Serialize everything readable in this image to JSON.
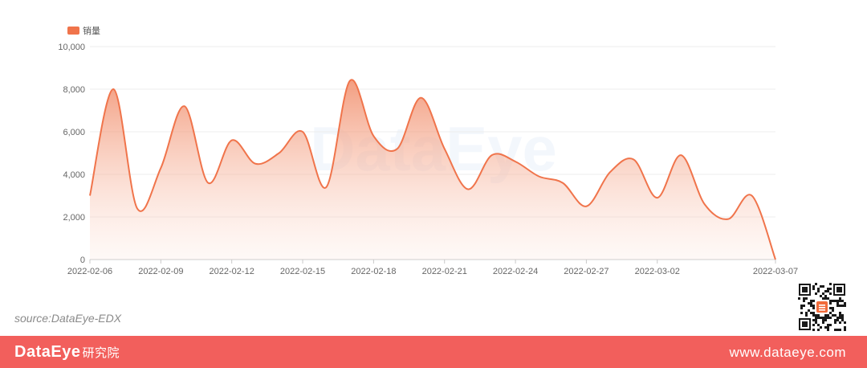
{
  "chart_data": {
    "type": "area",
    "legend": {
      "label": "销量",
      "color": "#f0744b",
      "placement": "top-left"
    },
    "x_tick_labels": [
      "2022-02-06",
      "2022-02-09",
      "2022-02-12",
      "2022-02-15",
      "2022-02-18",
      "2022-02-21",
      "2022-02-24",
      "2022-02-27",
      "2022-03-02",
      "2022-03-07"
    ],
    "x_range": [
      "2022-02-06",
      "2022-03-07"
    ],
    "y_ticks": [
      0,
      2000,
      4000,
      6000,
      8000,
      10000
    ],
    "y_tick_labels": [
      "0",
      "2,000",
      "4,000",
      "6,000",
      "8,000",
      "10,000"
    ],
    "ylim": [
      0,
      10000
    ],
    "grid": true,
    "series": [
      {
        "name": "销量",
        "color": "#f0744b",
        "points": [
          {
            "x": "2022-02-06",
            "y": 3000
          },
          {
            "x": "2022-02-07",
            "y": 8000
          },
          {
            "x": "2022-02-08",
            "y": 2400
          },
          {
            "x": "2022-02-09",
            "y": 4300
          },
          {
            "x": "2022-02-10",
            "y": 7200
          },
          {
            "x": "2022-02-11",
            "y": 3600
          },
          {
            "x": "2022-02-12",
            "y": 5600
          },
          {
            "x": "2022-02-13",
            "y": 4500
          },
          {
            "x": "2022-02-14",
            "y": 5000
          },
          {
            "x": "2022-02-15",
            "y": 6000
          },
          {
            "x": "2022-02-16",
            "y": 3400
          },
          {
            "x": "2022-02-17",
            "y": 8400
          },
          {
            "x": "2022-02-18",
            "y": 5800
          },
          {
            "x": "2022-02-19",
            "y": 5200
          },
          {
            "x": "2022-02-20",
            "y": 7600
          },
          {
            "x": "2022-02-21",
            "y": 5200
          },
          {
            "x": "2022-02-22",
            "y": 3300
          },
          {
            "x": "2022-02-23",
            "y": 4900
          },
          {
            "x": "2022-02-24",
            "y": 4600
          },
          {
            "x": "2022-02-25",
            "y": 3900
          },
          {
            "x": "2022-02-26",
            "y": 3600
          },
          {
            "x": "2022-02-27",
            "y": 2500
          },
          {
            "x": "2022-02-28",
            "y": 4100
          },
          {
            "x": "2022-03-01",
            "y": 4700
          },
          {
            "x": "2022-03-02",
            "y": 2900
          },
          {
            "x": "2022-03-03",
            "y": 4900
          },
          {
            "x": "2022-03-04",
            "y": 2600
          },
          {
            "x": "2022-03-05",
            "y": 1900
          },
          {
            "x": "2022-03-06",
            "y": 3000
          },
          {
            "x": "2022-03-07",
            "y": 0
          }
        ]
      }
    ]
  },
  "watermark": "DataEye",
  "source": "source:DataEye-EDX",
  "footer": {
    "brand": "DataEye",
    "brand_suffix": "研究院",
    "website": "www.dataeye.com",
    "bg_color": "#f25f5c"
  }
}
